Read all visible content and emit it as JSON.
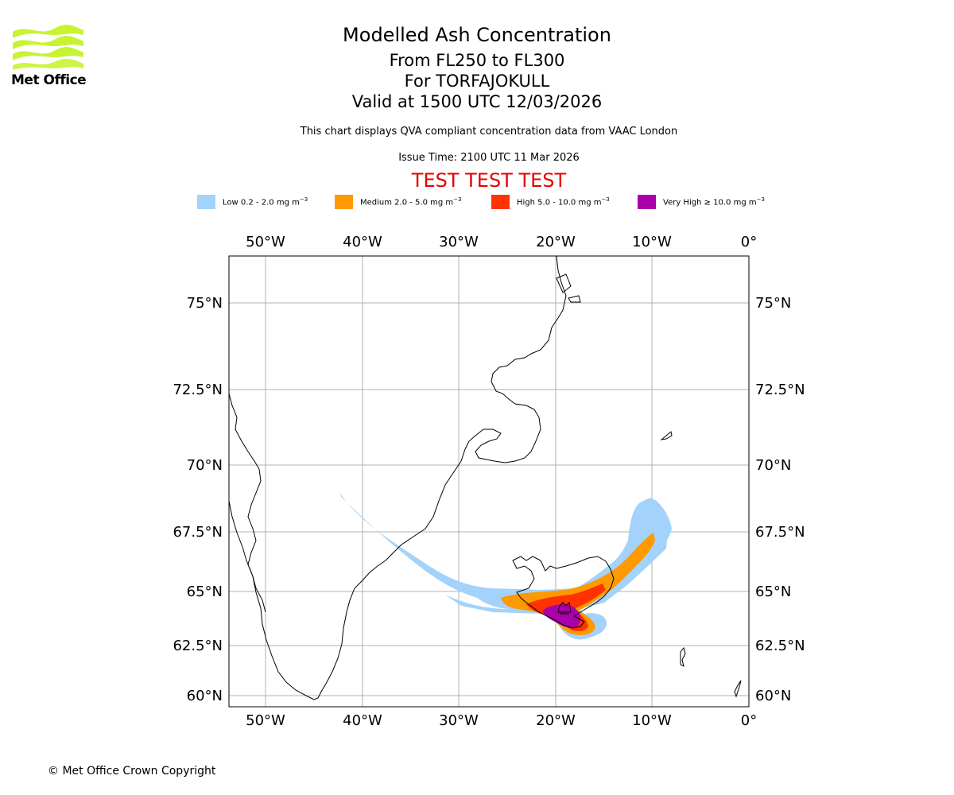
{
  "logo": {
    "text": "Met Office",
    "icon": "met-office-wave-logo"
  },
  "header": {
    "title": "Modelled Ash Concentration",
    "level_range": "From FL250 to FL300",
    "volcano": "For TORFAJOKULL",
    "valid": "Valid at 1500 UTC 12/03/2026",
    "description": "This chart displays QVA compliant concentration data from VAAC London",
    "issue_time": "Issue Time: 2100 UTC 11 Mar 2026",
    "test_banner": "TEST TEST TEST"
  },
  "legend": [
    {
      "label": "Low 0.2 - 2.0 mg m",
      "sup": "−3",
      "color": "#a3d3fa"
    },
    {
      "label": "Medium 2.0 - 5.0 mg m",
      "sup": "−3",
      "color": "#ff9900"
    },
    {
      "label": "High 5.0 - 10.0 mg m",
      "sup": "−3",
      "color": "#ff3300"
    },
    {
      "label": "Very High ≥ 10.0 mg m",
      "sup": "−3",
      "color": "#aa00aa"
    }
  ],
  "map": {
    "lon_labels": [
      "50°W",
      "40°W",
      "30°W",
      "20°W",
      "10°W",
      "0°"
    ],
    "lat_labels": [
      "75°N",
      "72.5°N",
      "70°N",
      "67.5°N",
      "65°N",
      "62.5°N",
      "60°N"
    ],
    "lon_values": [
      -50,
      -40,
      -30,
      -20,
      -10,
      0
    ],
    "lat_values": [
      75,
      72.5,
      70,
      67.5,
      65,
      62.5,
      60
    ]
  },
  "footer": {
    "copyright": "© Met Office Crown Copyright"
  }
}
